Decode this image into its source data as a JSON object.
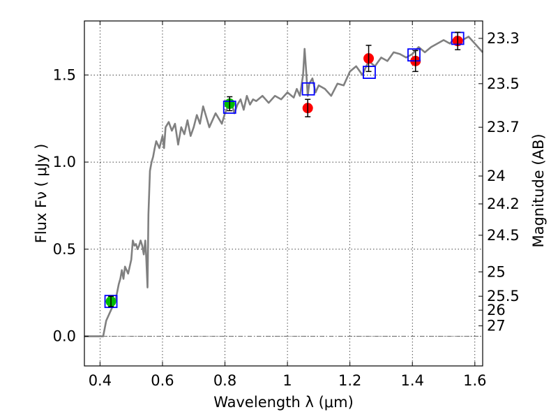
{
  "chart_data": {
    "type": "scatter",
    "title": "",
    "xlabel": "Wavelength  λ (μm)",
    "ylabel": "Flux  Fν  ( μJy )",
    "ylabel_right": "Magnitude (AB)",
    "xlim": [
      0.35,
      1.625
    ],
    "ylim": [
      -0.17,
      1.81
    ],
    "grid": true,
    "x_ticks": [
      0.4,
      0.6,
      0.8,
      1.0,
      1.2,
      1.4,
      1.6
    ],
    "x_tick_labels": [
      "0.4",
      "0.6",
      "0.8",
      "1",
      "1.2",
      "1.4",
      "1.6"
    ],
    "y_ticks": [
      0.0,
      0.5,
      1.0,
      1.5
    ],
    "y_tick_labels": [
      "0.0",
      "0.5",
      "1.0",
      "1.5"
    ],
    "right_ticks": [
      {
        "label": "23.3",
        "flux": 1.71
      },
      {
        "label": "23.5",
        "flux": 1.45
      },
      {
        "label": "23.7",
        "flux": 1.2
      },
      {
        "label": "24",
        "flux": 0.92
      },
      {
        "label": "24.2",
        "flux": 0.76
      },
      {
        "label": "24.5",
        "flux": 0.58
      },
      {
        "label": "25",
        "flux": 0.37
      },
      {
        "label": "25.5",
        "flux": 0.23
      },
      {
        "label": "26",
        "flux": 0.15
      },
      {
        "label": "27",
        "flux": 0.06
      }
    ],
    "colors": {
      "spectrum": "#808080",
      "green_points": "#00bb00",
      "red_points": "#ff0000",
      "model_squares": "#0000ff",
      "zero_line": "#555555"
    },
    "spectrum": {
      "x": [
        0.35,
        0.41,
        0.42,
        0.44,
        0.45,
        0.46,
        0.465,
        0.47,
        0.475,
        0.48,
        0.49,
        0.5,
        0.505,
        0.51,
        0.515,
        0.52,
        0.525,
        0.53,
        0.535,
        0.54,
        0.545,
        0.548,
        0.552,
        0.555,
        0.56,
        0.565,
        0.57,
        0.575,
        0.58,
        0.59,
        0.6,
        0.605,
        0.61,
        0.62,
        0.63,
        0.64,
        0.65,
        0.66,
        0.67,
        0.68,
        0.69,
        0.7,
        0.71,
        0.72,
        0.73,
        0.74,
        0.75,
        0.76,
        0.77,
        0.78,
        0.79,
        0.8,
        0.81,
        0.82,
        0.83,
        0.84,
        0.85,
        0.86,
        0.87,
        0.88,
        0.89,
        0.9,
        0.92,
        0.94,
        0.96,
        0.98,
        1.0,
        1.02,
        1.03,
        1.04,
        1.05,
        1.055,
        1.06,
        1.065,
        1.07,
        1.08,
        1.09,
        1.1,
        1.12,
        1.14,
        1.16,
        1.18,
        1.2,
        1.22,
        1.24,
        1.26,
        1.28,
        1.3,
        1.32,
        1.34,
        1.36,
        1.38,
        1.4,
        1.42,
        1.44,
        1.46,
        1.48,
        1.5,
        1.52,
        1.54,
        1.56,
        1.58,
        1.6,
        1.625
      ],
      "y": [
        0.0,
        0.0,
        0.09,
        0.17,
        0.21,
        0.3,
        0.33,
        0.38,
        0.33,
        0.4,
        0.36,
        0.44,
        0.55,
        0.52,
        0.53,
        0.5,
        0.52,
        0.55,
        0.52,
        0.47,
        0.55,
        0.45,
        0.28,
        0.7,
        0.95,
        1.0,
        1.03,
        1.08,
        1.12,
        1.08,
        1.15,
        1.08,
        1.2,
        1.23,
        1.18,
        1.22,
        1.1,
        1.2,
        1.16,
        1.24,
        1.15,
        1.2,
        1.27,
        1.22,
        1.32,
        1.26,
        1.2,
        1.24,
        1.28,
        1.25,
        1.22,
        1.28,
        1.32,
        1.35,
        1.28,
        1.33,
        1.36,
        1.3,
        1.38,
        1.33,
        1.36,
        1.35,
        1.38,
        1.34,
        1.38,
        1.36,
        1.4,
        1.37,
        1.42,
        1.38,
        1.5,
        1.65,
        1.52,
        1.38,
        1.45,
        1.48,
        1.4,
        1.44,
        1.42,
        1.38,
        1.45,
        1.44,
        1.52,
        1.55,
        1.5,
        1.58,
        1.55,
        1.6,
        1.58,
        1.63,
        1.62,
        1.6,
        1.62,
        1.66,
        1.63,
        1.66,
        1.68,
        1.7,
        1.68,
        1.72,
        1.7,
        1.72,
        1.68,
        1.63
      ]
    },
    "green_points": [
      {
        "x": 0.435,
        "y": 0.2,
        "yerr": 0.03
      },
      {
        "x": 0.815,
        "y": 1.335,
        "yerr": 0.04
      }
    ],
    "red_points": [
      {
        "x": 1.065,
        "y": 1.31,
        "yerr": 0.05
      },
      {
        "x": 1.26,
        "y": 1.595,
        "yerr": 0.075
      },
      {
        "x": 1.41,
        "y": 1.58,
        "yerr": 0.06
      },
      {
        "x": 1.545,
        "y": 1.695,
        "yerr": 0.05
      }
    ],
    "model_squares": [
      {
        "x": 0.435,
        "y": 0.2
      },
      {
        "x": 0.815,
        "y": 1.315
      },
      {
        "x": 1.067,
        "y": 1.42
      },
      {
        "x": 1.262,
        "y": 1.515
      },
      {
        "x": 1.405,
        "y": 1.615
      },
      {
        "x": 1.545,
        "y": 1.71
      }
    ]
  }
}
